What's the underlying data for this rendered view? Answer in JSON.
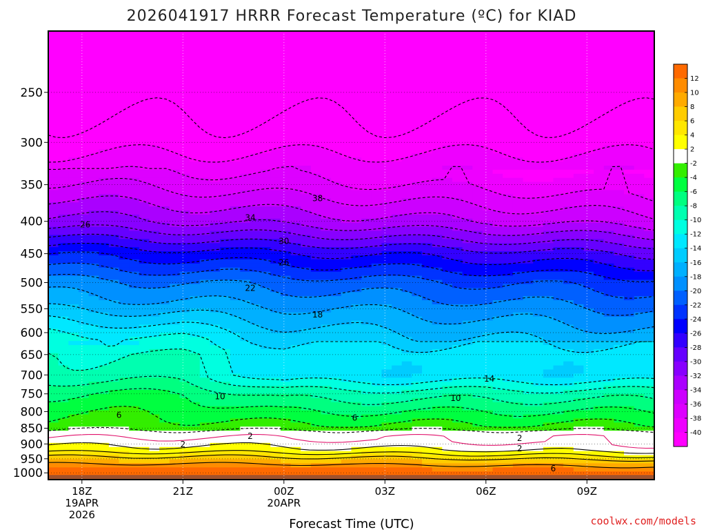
{
  "title": "2026041917 HRRR Forecast Temperature (ºC) for KIAD",
  "credit": "coolwx.com/models",
  "chart_data": {
    "type": "heatmap",
    "title": "2026041917 HRRR Forecast Temperature (ºC) for KIAD",
    "xlabel": "Forecast Time (UTC)",
    "ylabel": "",
    "x_ticks": [
      {
        "label": "18Z",
        "sub": [
          "19APR",
          "2026"
        ],
        "hour": 1
      },
      {
        "label": "21Z",
        "sub": [],
        "hour": 4
      },
      {
        "label": "00Z",
        "sub": [
          "20APR"
        ],
        "hour": 7
      },
      {
        "label": "03Z",
        "sub": [],
        "hour": 10
      },
      {
        "label": "06Z",
        "sub": [],
        "hour": 13
      },
      {
        "label": "09Z",
        "sub": [],
        "hour": 16
      }
    ],
    "xlim": [
      0,
      18
    ],
    "y_axis": "pressure (hPa), log scale, inverted",
    "ylim": [
      1025,
      200
    ],
    "y_ticks": [
      250,
      300,
      350,
      400,
      450,
      500,
      550,
      600,
      650,
      700,
      750,
      800,
      850,
      900,
      950,
      1000
    ],
    "grid": true,
    "colorbar": {
      "position": "right",
      "levels": [
        {
          "min": -42,
          "max": -40,
          "color": "#ff00ff"
        },
        {
          "min": -40,
          "max": -38,
          "color": "#ee00ff"
        },
        {
          "min": -38,
          "max": -36,
          "color": "#dd00ff"
        },
        {
          "min": -36,
          "max": -34,
          "color": "#cc00ff"
        },
        {
          "min": -34,
          "max": -32,
          "color": "#aa00ff"
        },
        {
          "min": -32,
          "max": -30,
          "color": "#8800ff"
        },
        {
          "min": -30,
          "max": -28,
          "color": "#6600ff"
        },
        {
          "min": -28,
          "max": -26,
          "color": "#3300ff"
        },
        {
          "min": -26,
          "max": -24,
          "color": "#0000ff"
        },
        {
          "min": -24,
          "max": -22,
          "color": "#0033ff"
        },
        {
          "min": -22,
          "max": -20,
          "color": "#0060ff"
        },
        {
          "min": -20,
          "max": -18,
          "color": "#0090ff"
        },
        {
          "min": -18,
          "max": -16,
          "color": "#00b0ff"
        },
        {
          "min": -16,
          "max": -14,
          "color": "#00ccff"
        },
        {
          "min": -14,
          "max": -12,
          "color": "#00e8ff"
        },
        {
          "min": -12,
          "max": -10,
          "color": "#00ffe0"
        },
        {
          "min": -10,
          "max": -8,
          "color": "#00ffb0"
        },
        {
          "min": -8,
          "max": -6,
          "color": "#00ff80"
        },
        {
          "min": -6,
          "max": -4,
          "color": "#00ff40"
        },
        {
          "min": -4,
          "max": -2,
          "color": "#33ee00"
        },
        {
          "min": -2,
          "max": 2,
          "color": "#ffffff"
        },
        {
          "min": 2,
          "max": 4,
          "color": "#ffff00"
        },
        {
          "min": 4,
          "max": 6,
          "color": "#ffe600"
        },
        {
          "min": 6,
          "max": 8,
          "color": "#ffcc00"
        },
        {
          "min": 8,
          "max": 10,
          "color": "#ffaa00"
        },
        {
          "min": 10,
          "max": 12,
          "color": "#ff8c00"
        },
        {
          "min": 12,
          "max": 14,
          "color": "#ff6a00"
        }
      ],
      "tick_labels": [
        "12",
        "10",
        "8",
        "6",
        "4",
        "2",
        "-2",
        "-4",
        "-6",
        "-8",
        "-10",
        "-12",
        "-14",
        "-16",
        "-18",
        "-20",
        "-22",
        "-24",
        "-26",
        "-28",
        "-30",
        "-32",
        "-34",
        "-36",
        "-38",
        "-40"
      ]
    },
    "ground_color": "#a0522d",
    "contour_labels": [
      {
        "text": "38",
        "hour": 8.0,
        "p": 368
      },
      {
        "text": "34",
        "hour": 6.0,
        "p": 395
      },
      {
        "text": "30",
        "hour": 7.0,
        "p": 430
      },
      {
        "text": "26",
        "hour": 1.1,
        "p": 405
      },
      {
        "text": "26",
        "hour": 7.0,
        "p": 465
      },
      {
        "text": "22",
        "hour": 6.0,
        "p": 510
      },
      {
        "text": "18",
        "hour": 8.0,
        "p": 562
      },
      {
        "text": "14",
        "hour": 13.1,
        "p": 710
      },
      {
        "text": "10",
        "hour": 5.1,
        "p": 757
      },
      {
        "text": "10",
        "hour": 12.1,
        "p": 762
      },
      {
        "text": "6",
        "hour": 2.1,
        "p": 810
      },
      {
        "text": "6",
        "hour": 9.1,
        "p": 818
      },
      {
        "text": "2",
        "hour": 6.0,
        "p": 875
      },
      {
        "text": "2",
        "hour": 14.0,
        "p": 881
      },
      {
        "text": "2",
        "hour": 4.0,
        "p": 902
      },
      {
        "text": "2",
        "hour": 14.0,
        "p": 915
      },
      {
        "text": "6",
        "hour": 15.0,
        "p": 985
      }
    ]
  }
}
